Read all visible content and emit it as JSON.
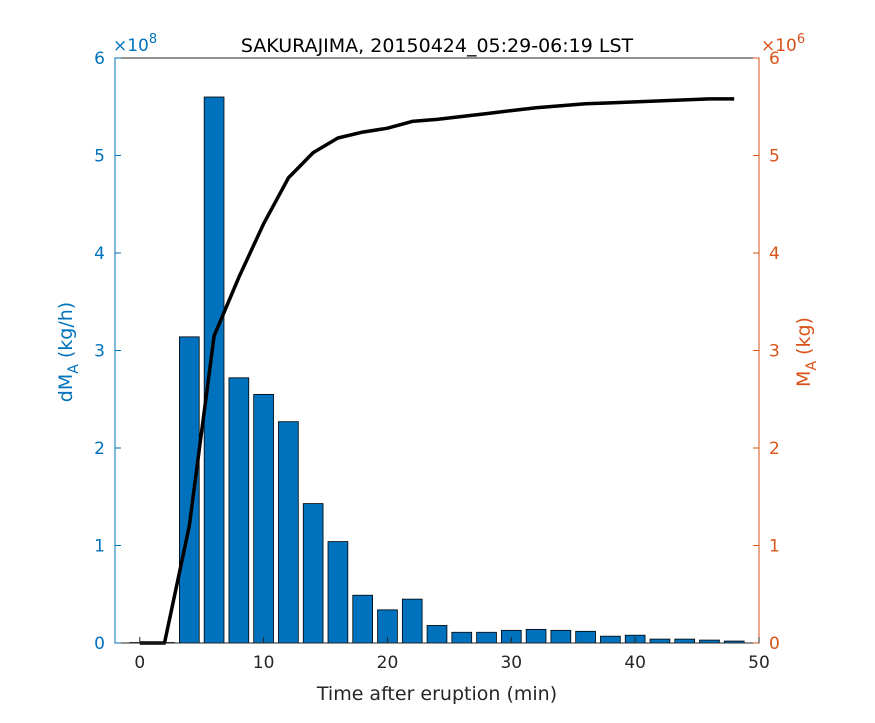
{
  "chart_data": {
    "type": "bar",
    "title": "SAKURAJIMA, 20150424_05:29-06:19 LST",
    "xlabel": "Time after eruption (min)",
    "xlim": [
      -2,
      50
    ],
    "xticks": [
      0,
      10,
      20,
      30,
      40,
      50
    ],
    "y_left": {
      "label_main": "dM",
      "label_sub": "A",
      "label_unit": "(kg/h)",
      "exponent_base": "×10",
      "exponent_power": "8",
      "ylim": [
        0,
        6
      ],
      "ticks": [
        0,
        1,
        2,
        3,
        4,
        5,
        6
      ],
      "color": "#0072BD"
    },
    "y_right": {
      "label_main": "M",
      "label_sub": "A",
      "label_unit": "(kg)",
      "exponent_base": "×10",
      "exponent_power": "6",
      "ylim": [
        0,
        6
      ],
      "ticks": [
        0,
        1,
        2,
        3,
        4,
        5,
        6
      ],
      "color": "#D95319"
    },
    "bars": {
      "name": "dMA (kg/h)",
      "color": "#0072BD",
      "x": [
        0,
        2,
        4,
        6,
        8,
        10,
        12,
        14,
        16,
        18,
        20,
        22,
        24,
        26,
        28,
        30,
        32,
        34,
        36,
        38,
        40,
        42,
        44,
        46,
        48
      ],
      "values": [
        0,
        0,
        3.14,
        5.6,
        2.72,
        2.55,
        2.27,
        1.43,
        1.04,
        0.49,
        0.34,
        0.45,
        0.18,
        0.11,
        0.11,
        0.13,
        0.14,
        0.13,
        0.12,
        0.07,
        0.08,
        0.04,
        0.04,
        0.03,
        0.02
      ]
    },
    "line": {
      "name": "MA (kg)",
      "color": "#000000",
      "x": [
        0,
        2,
        4,
        6,
        8,
        10,
        12,
        14,
        16,
        18,
        20,
        22,
        24,
        26,
        28,
        30,
        32,
        34,
        36,
        38,
        40,
        42,
        44,
        46,
        48
      ],
      "values": [
        0,
        0,
        1.2,
        3.15,
        3.75,
        4.3,
        4.77,
        5.03,
        5.18,
        5.24,
        5.28,
        5.35,
        5.37,
        5.4,
        5.43,
        5.46,
        5.49,
        5.51,
        5.53,
        5.54,
        5.55,
        5.56,
        5.57,
        5.58,
        5.58
      ]
    },
    "grid": false
  }
}
